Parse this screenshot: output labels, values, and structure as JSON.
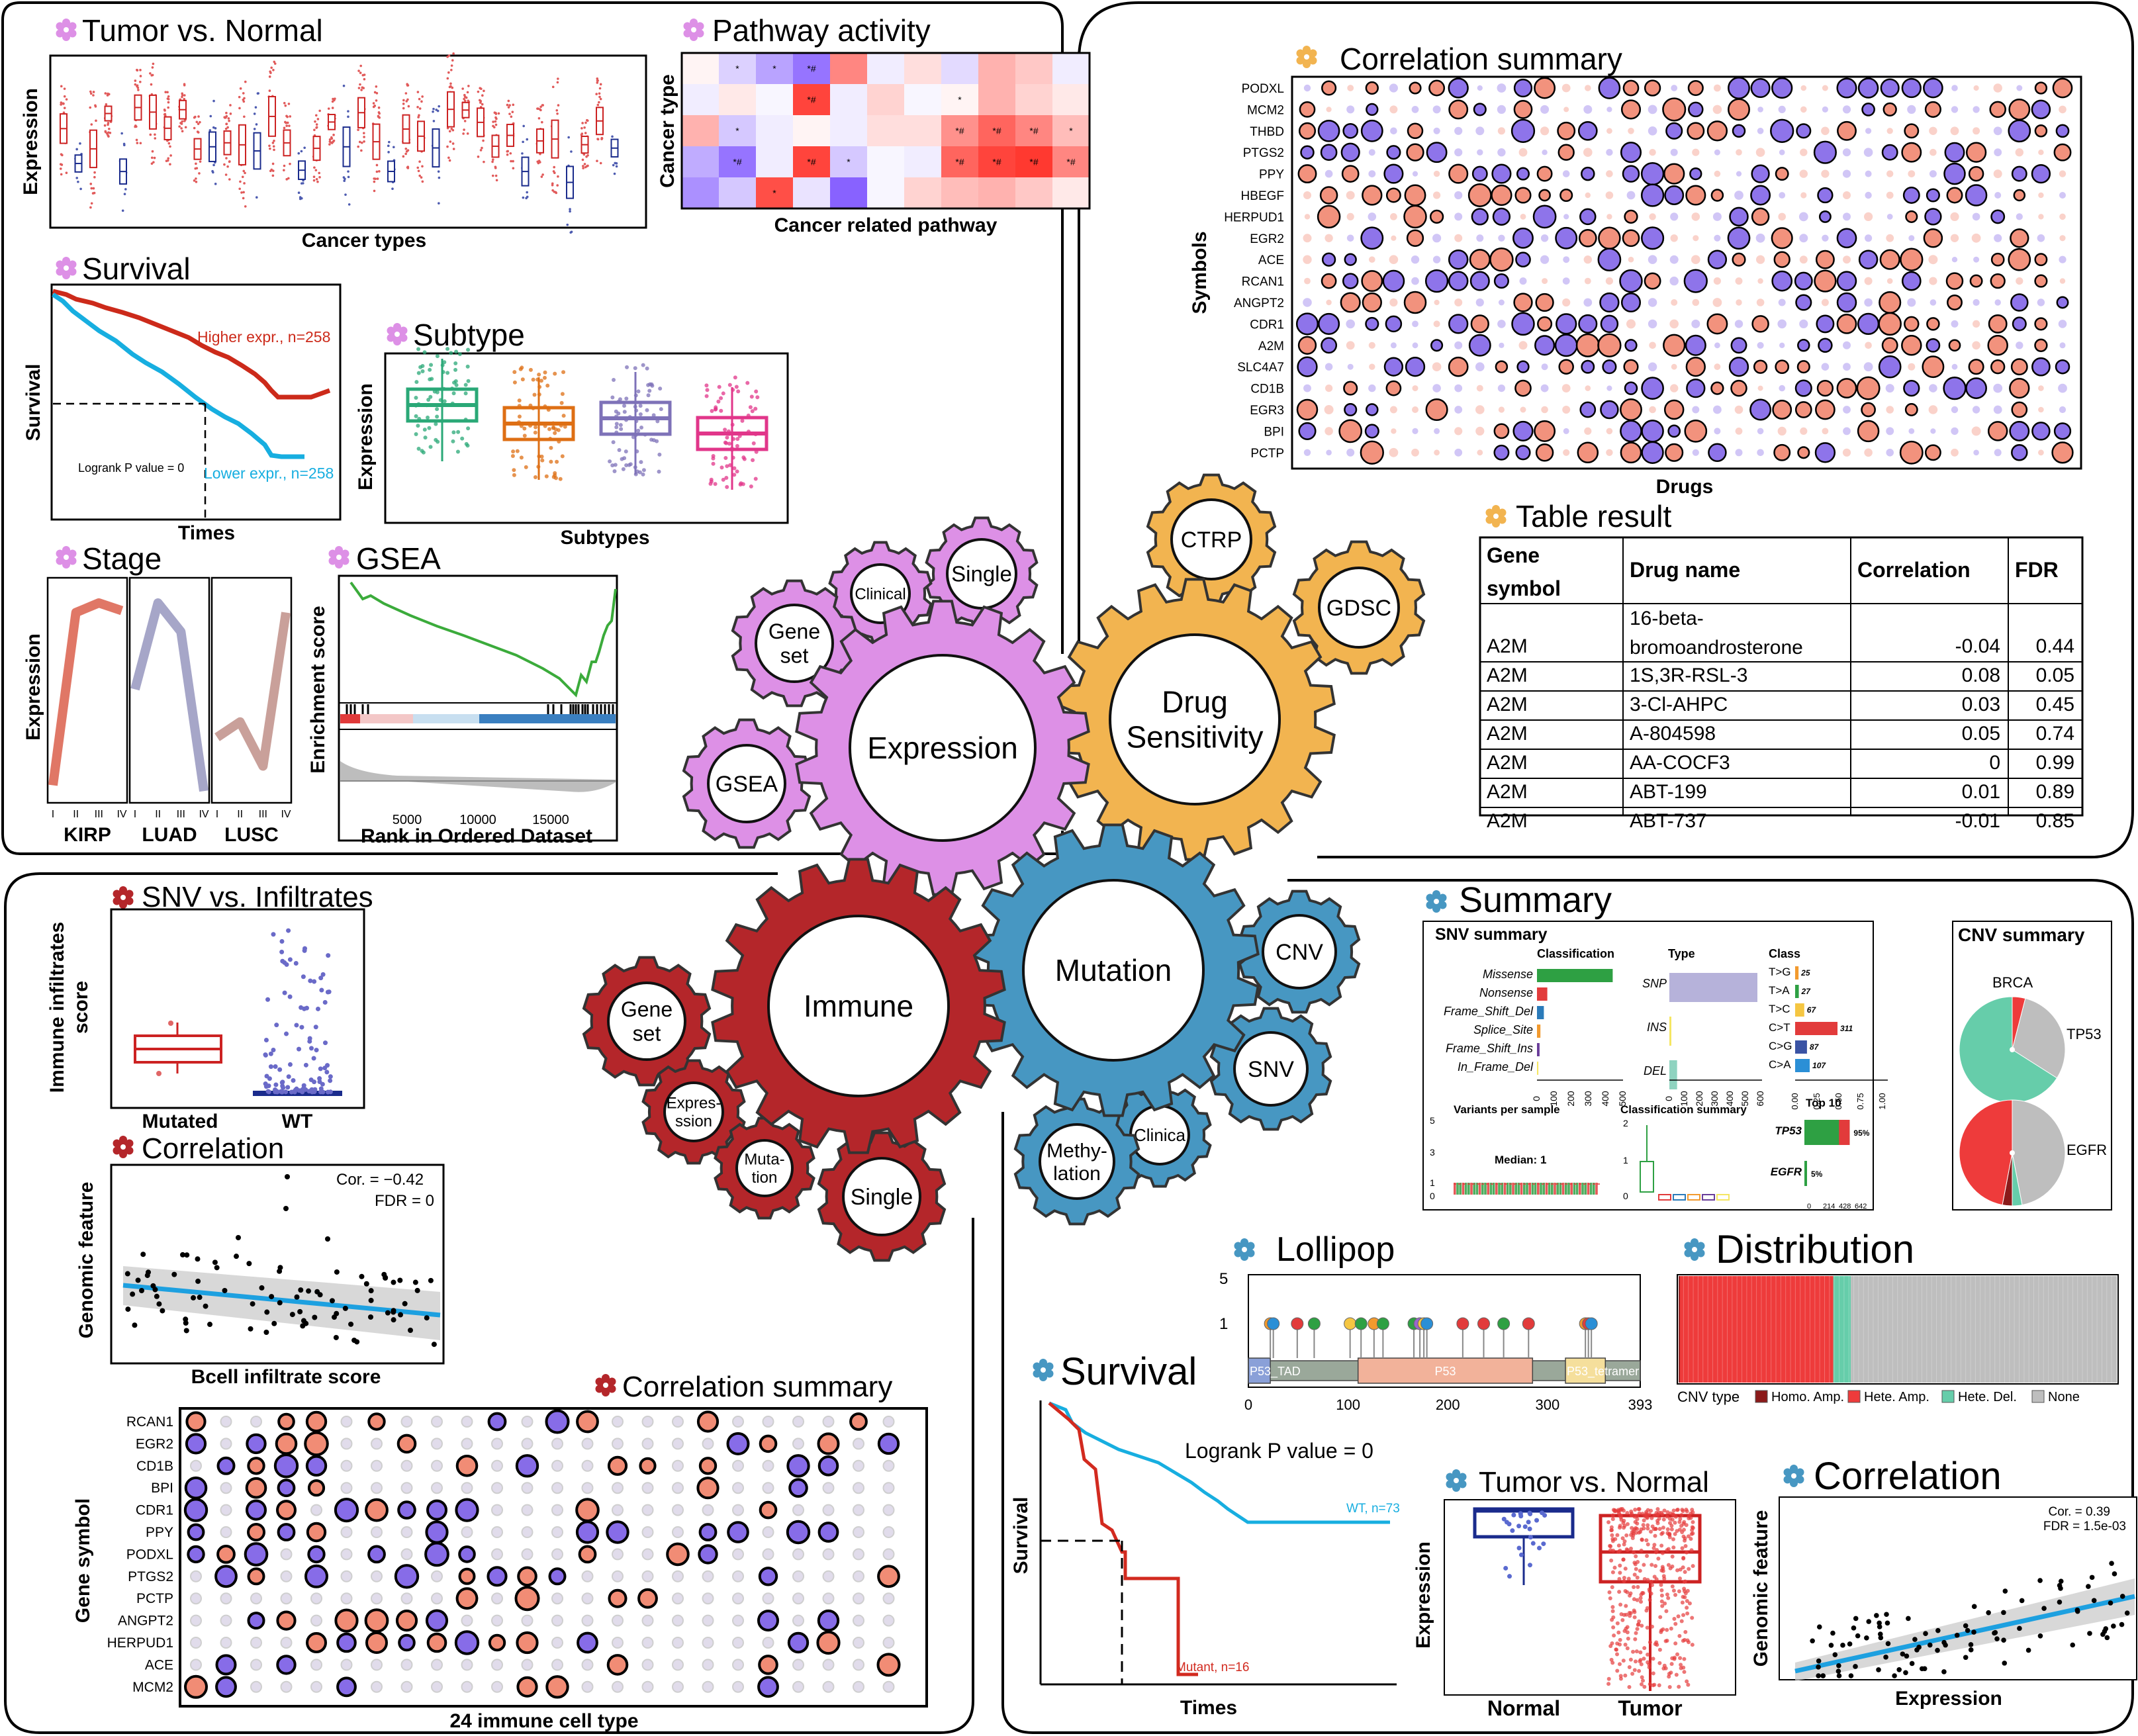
{
  "colors": {
    "expression": "#dd90e6",
    "drug": "#f2b450",
    "immune": "#b4262a",
    "mutation": "#4797c2",
    "tumor_red": "#cc2222",
    "normal_blue": "#1a2b8c",
    "light_blue": "#17aee0",
    "green": "#2ea043",
    "teal": "#2aa877",
    "orange": "#de6f14",
    "purple": "#7e72b8",
    "pink": "#e1368a",
    "grey": "#b8b8b8",
    "corr_pos": "#f07f66",
    "corr_neg": "#7a5ce6"
  },
  "tumor_normal": {
    "title": "Tumor vs. Normal",
    "ylabel": "Expression",
    "xlabel": "Cancer types"
  },
  "pathway": {
    "title": "Pathway activity",
    "ylabel": "Cancer type",
    "xlabel": "Cancer related pathway",
    "star": "*",
    "star_hash": "*#",
    "matrix": [
      [
        0.05,
        -0.25,
        -0.5,
        -0.75,
        0.55,
        -0.1,
        0.15,
        -0.2,
        0.35,
        0.25,
        -0.1
      ],
      [
        -0.1,
        0.1,
        -0.05,
        0.85,
        -0.1,
        0.2,
        -0.05,
        0.05,
        0.35,
        0.2,
        0.1
      ],
      [
        0.35,
        -0.3,
        -0.1,
        0.05,
        -0.1,
        0.15,
        0.15,
        0.5,
        0.7,
        0.55,
        0.3
      ],
      [
        -0.45,
        -0.75,
        -0.1,
        0.85,
        -0.3,
        -0.05,
        -0.1,
        0.7,
        0.85,
        0.9,
        0.55
      ],
      [
        -0.6,
        -0.3,
        0.8,
        -0.15,
        -0.85,
        -0.05,
        0.2,
        0.3,
        0.35,
        0.25,
        0.1
      ]
    ],
    "marks": [
      [
        null,
        "*",
        "*",
        "*#",
        null,
        null,
        null,
        null,
        null,
        null,
        null
      ],
      [
        null,
        null,
        null,
        "*#",
        null,
        null,
        null,
        "*",
        null,
        null,
        null
      ],
      [
        null,
        "*",
        null,
        null,
        null,
        null,
        null,
        "*#",
        "*#",
        "*#",
        "*"
      ],
      [
        null,
        "*#",
        null,
        "*#",
        "*",
        null,
        null,
        "*#",
        "*#",
        "*#",
        "*#"
      ],
      [
        null,
        null,
        "*",
        null,
        null,
        null,
        null,
        null,
        null,
        null,
        null
      ]
    ]
  },
  "survival_expr": {
    "title": "Survival",
    "ylabel": "Survival",
    "xlabel": "Times",
    "high_label": "Higher expr., n=258",
    "low_label": "Lower expr., n=258",
    "pvalue": "Logrank P value = 0"
  },
  "subtype": {
    "title": "Subtype",
    "ylabel": "Expression",
    "xlabel": "Subtypes"
  },
  "stage": {
    "title": "Stage",
    "ylabel": "Expression",
    "ticks": [
      "I",
      "II",
      "III",
      "IV"
    ],
    "panels": [
      {
        "name": "KIRP",
        "color": "#e07766",
        "values": [
          0.05,
          0.95,
          1.0,
          0.96
        ]
      },
      {
        "name": "LUAD",
        "color": "#a6a6c8",
        "values": [
          0.55,
          1.0,
          0.85,
          0.02
        ]
      },
      {
        "name": "LUSC",
        "color": "#c9a09a",
        "values": [
          0.3,
          0.38,
          0.15,
          0.95
        ]
      }
    ]
  },
  "gsea": {
    "title": "GSEA",
    "ylabel": "Enrichment score",
    "xlabel": "Rank in Ordered Dataset",
    "ticks": [
      "5000",
      "10000",
      "15000"
    ]
  },
  "drug_corr": {
    "title": "Correlation summary",
    "ylabel": "Symbols",
    "xlabel": "Drugs",
    "genes": [
      "PODXL",
      "MCM2",
      "THBD",
      "PTGS2",
      "PPY",
      "HBEGF",
      "HERPUD1",
      "EGR2",
      "ACE",
      "RCAN1",
      "ANGPT2",
      "CDR1",
      "A2M",
      "SLC4A7",
      "CD1B",
      "EGR3",
      "BPI",
      "PCTP"
    ],
    "n_drugs": 36
  },
  "table": {
    "title": "Table result",
    "headers": [
      "Gene symbol",
      "Drug name",
      "Correlation",
      "FDR"
    ],
    "rows": [
      [
        "A2M",
        "16-beta-bromoandrosterone",
        "-0.04",
        "0.44"
      ],
      [
        "A2M",
        "1S,3R-RSL-3",
        "0.08",
        "0.05"
      ],
      [
        "A2M",
        "3-Cl-AHPC",
        "0.03",
        "0.45"
      ],
      [
        "A2M",
        "A-804598",
        "0.05",
        "0.74"
      ],
      [
        "A2M",
        "AA-COCF3",
        "0",
        "0.99"
      ],
      [
        "A2M",
        "ABT-199",
        "0.01",
        "0.89"
      ],
      [
        "A2M",
        "ABT-737",
        "-0.01",
        "0.85"
      ]
    ]
  },
  "gears": {
    "expression": {
      "label": "Expression"
    },
    "drug": {
      "label1": "Drug",
      "label2": "Sensitivity"
    },
    "ctrp": {
      "label": "CTRP"
    },
    "gdsc": {
      "label": "GDSC"
    },
    "single_top": {
      "label": "Single"
    },
    "clinical_top": {
      "label": "Clinical"
    },
    "geneset_top": {
      "label1": "Gene",
      "label2": "set"
    },
    "gsea": {
      "label": "GSEA"
    },
    "immune": {
      "label": "Immune"
    },
    "mutation": {
      "label": "Mutation"
    },
    "geneset_bottom": {
      "label1": "Gene",
      "label2": "set"
    },
    "expression_small": {
      "label1": "Expres-",
      "label2": "ssion"
    },
    "mutation_small": {
      "label1": "Muta-",
      "label2": "tion"
    },
    "single_bottom": {
      "label": "Single"
    },
    "cnv": {
      "label": "CNV"
    },
    "snv": {
      "label": "SNV"
    },
    "methylation": {
      "label1": "Methy-",
      "label2": "lation"
    },
    "clinical_bottom": {
      "label": "Clinica"
    }
  },
  "snv_infiltrates": {
    "title": "SNV vs. Infiltrates",
    "ylabel1": "Immune infiltrates",
    "ylabel2": "score",
    "groups": [
      "Mutated",
      "WT"
    ]
  },
  "immune_correlation": {
    "title": "Correlation",
    "ylabel": "Genomic feature",
    "xlabel": "Bcell infiltrate score",
    "cor": "Cor. = −0.42",
    "fdr": "FDR = 0"
  },
  "immune_corr_summary": {
    "title": "Correlation summary",
    "ylabel": "Gene symbol",
    "xlabel": "24 immune cell type",
    "genes": [
      "RCAN1",
      "EGR2",
      "CD1B",
      "BPI",
      "CDR1",
      "PPY",
      "PODXL",
      "PTGS2",
      "PCTP",
      "ANGPT2",
      "HERPUD1",
      "ACE",
      "MCM2"
    ],
    "n_cells": 24
  },
  "mutation_summary": {
    "title": "Summary",
    "snv_title": "SNV summary",
    "classification_title": "Classification",
    "classifications": [
      {
        "name": "Missense",
        "value": 440,
        "color": "#2ea043"
      },
      {
        "name": "Nonsense",
        "value": 60,
        "color": "#e23b3b"
      },
      {
        "name": "Frame_Shift_Del",
        "value": 40,
        "color": "#2b7bba"
      },
      {
        "name": "Splice_Site",
        "value": 20,
        "color": "#f29a2e"
      },
      {
        "name": "Frame_Shift_Ins",
        "value": 15,
        "color": "#6a3d9a"
      },
      {
        "name": "In_Frame_Del",
        "value": 8,
        "color": "#f5e663"
      }
    ],
    "class_ticks": [
      "0",
      "100",
      "200",
      "300",
      "400",
      "500"
    ],
    "type_title": "Type",
    "types": [
      {
        "name": "SNP",
        "value": 570,
        "color": "#b6b2da"
      },
      {
        "name": "INS",
        "value": 10,
        "color": "#f5e663"
      },
      {
        "name": "DEL",
        "value": 50,
        "color": "#8fd3c0"
      }
    ],
    "type_ticks": [
      "0",
      "100",
      "200",
      "300",
      "400",
      "500",
      "600"
    ],
    "class_title": "Class",
    "transitions": [
      {
        "name": "T>G",
        "value": 25,
        "color": "#f29a2e"
      },
      {
        "name": "T>A",
        "value": 27,
        "color": "#2ea043"
      },
      {
        "name": "T>C",
        "value": 67,
        "color": "#f5c642"
      },
      {
        "name": "C>T",
        "value": 311,
        "color": "#e23b3b"
      },
      {
        "name": "C>G",
        "value": 87,
        "color": "#3a53a4"
      },
      {
        "name": "C>A",
        "value": 107,
        "color": "#2b8fd6"
      }
    ],
    "trans_ticks": [
      "0.00",
      "0.25",
      "0.50",
      "0.75",
      "1.00"
    ],
    "variants_title": "Variants per sample",
    "median": "Median: 1",
    "variants_ticks": [
      "5",
      "3",
      "1",
      "0"
    ],
    "class_summary_title": "Classification summary",
    "class_summary_ticks": [
      "2",
      "1",
      "0"
    ],
    "top10_title": "Top 10",
    "top_genes": [
      {
        "name": "TP53",
        "pct": "95%",
        "value": 0.95
      },
      {
        "name": "EGFR",
        "pct": "5%",
        "value": 0.05
      }
    ],
    "top_ticks": [
      "0",
      "214",
      "428",
      "642"
    ],
    "cnv_title": "CNV summary",
    "cnv_labels": [
      "BRCA",
      "TP53",
      "EGFR"
    ]
  },
  "lollipop": {
    "title": "Lollipop",
    "y_ticks": [
      "5",
      "1"
    ],
    "x_ticks": [
      "0",
      "100",
      "200",
      "300",
      "393"
    ],
    "domains": [
      {
        "label": "P53_TAD",
        "start": 0,
        "end": 22,
        "color": "#8aa0d8"
      },
      {
        "label": "P53",
        "start": 110,
        "end": 285,
        "color": "#f2b29a"
      },
      {
        "label": "P53_tetramer",
        "start": 318,
        "end": 358,
        "color": "#f5df9c"
      }
    ],
    "pins": [
      {
        "pos": 22,
        "color": "#f29a2e"
      },
      {
        "pos": 25,
        "color": "#2b8fd6"
      },
      {
        "pos": 49,
        "color": "#e23b3b"
      },
      {
        "pos": 66,
        "color": "#2ea043"
      },
      {
        "pos": 102,
        "color": "#f5c642"
      },
      {
        "pos": 113,
        "color": "#2ea043"
      },
      {
        "pos": 126,
        "color": "#f29a2e"
      },
      {
        "pos": 135,
        "color": "#2ea043"
      },
      {
        "pos": 166,
        "color": "#2ea043"
      },
      {
        "pos": 172,
        "color": "#9a66cc"
      },
      {
        "pos": 176,
        "color": "#f5c642"
      },
      {
        "pos": 179,
        "color": "#2b8fd6"
      },
      {
        "pos": 215,
        "color": "#e23b3b"
      },
      {
        "pos": 236,
        "color": "#e23b3b"
      },
      {
        "pos": 256,
        "color": "#2ea043"
      },
      {
        "pos": 281,
        "color": "#e23b3b"
      },
      {
        "pos": 338,
        "color": "#f29a2e"
      },
      {
        "pos": 341,
        "color": "#e23b3b"
      },
      {
        "pos": 344,
        "color": "#2b8fd6"
      }
    ]
  },
  "distribution": {
    "title": "Distribution",
    "legend_title": "CNV type",
    "legend": [
      {
        "label": "Homo. Amp.",
        "color": "#8b1a1a"
      },
      {
        "label": "Hete. Amp.",
        "color": "#ee3b3b"
      },
      {
        "label": "Hete. Del.",
        "color": "#66cdaa"
      },
      {
        "label": "None",
        "color": "#bebebe"
      }
    ],
    "fractions": [
      0.003,
      0.35,
      0.04,
      0.607
    ]
  },
  "mutation_survival": {
    "title": "Survival",
    "ylabel": "Survival",
    "xlabel": "Times",
    "pvalue": "Logrank P value = 0",
    "wt_label": "WT, n=73",
    "mutant_label": "Mutant, n=16"
  },
  "mutation_tumor_normal": {
    "title": "Tumor vs. Normal",
    "ylabel": "Expression",
    "groups": [
      "Normal",
      "Tumor"
    ]
  },
  "mutation_correlation": {
    "title": "Correlation",
    "ylabel": "Genomic feature",
    "xlabel": "Expression",
    "cor": "Cor. = 0.39",
    "fdr": "FDR = 1.5e-03"
  }
}
